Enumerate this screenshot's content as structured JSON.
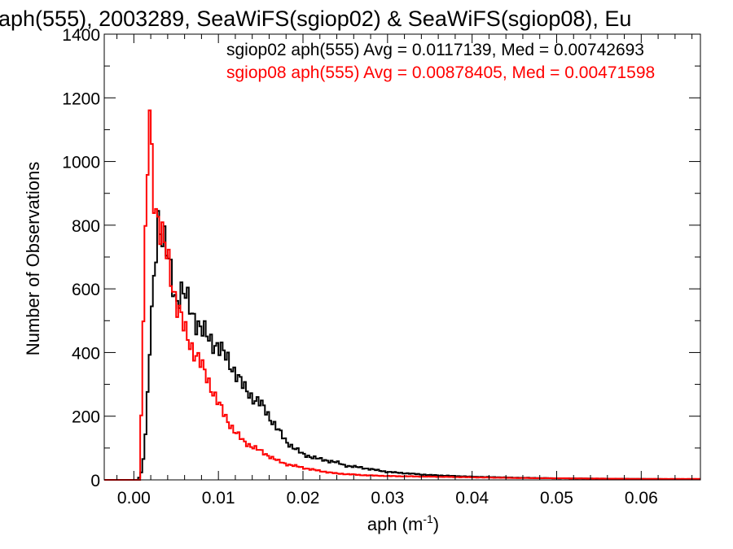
{
  "chart_data": {
    "type": "histogram",
    "title": "aph(555), 2003289, SeaWiFS(sgiop02) & SeaWiFS(sgiop08), Eu",
    "xlabel_base": "aph (m",
    "xlabel_sup": "-1",
    "xlabel_end": ")",
    "ylabel": "Number of Observations",
    "xlim": [
      -0.0035,
      0.067
    ],
    "ylim": [
      0,
      1400
    ],
    "xticks": [
      0.0,
      0.01,
      0.02,
      0.03,
      0.04,
      0.05,
      0.06
    ],
    "xtick_labels": [
      "0.00",
      "0.01",
      "0.02",
      "0.03",
      "0.04",
      "0.05",
      "0.06"
    ],
    "yticks": [
      0,
      200,
      400,
      600,
      800,
      1000,
      1200,
      1400
    ],
    "ytick_labels": [
      "0",
      "200",
      "400",
      "600",
      "800",
      "1000",
      "1200",
      "1400"
    ],
    "bin_width": 0.00025,
    "grid": false,
    "legend_position": "top-right",
    "series": [
      {
        "name": "sgiop02",
        "color": "#000000",
        "legend": "sgiop02 aph(555) Avg = 0.0117139, Med = 0.00742693",
        "points": [
          [
            -0.001,
            0
          ],
          [
            0.0005,
            0
          ],
          [
            0.001,
            30
          ],
          [
            0.0015,
            180
          ],
          [
            0.002,
            480
          ],
          [
            0.0025,
            680
          ],
          [
            0.0028,
            840
          ],
          [
            0.0032,
            780
          ],
          [
            0.0038,
            720
          ],
          [
            0.0045,
            640
          ],
          [
            0.005,
            560
          ],
          [
            0.0055,
            590
          ],
          [
            0.006,
            580
          ],
          [
            0.007,
            520
          ],
          [
            0.008,
            470
          ],
          [
            0.009,
            440
          ],
          [
            0.01,
            420
          ],
          [
            0.011,
            380
          ],
          [
            0.012,
            340
          ],
          [
            0.013,
            290
          ],
          [
            0.014,
            260
          ],
          [
            0.015,
            240
          ],
          [
            0.016,
            200
          ],
          [
            0.017,
            160
          ],
          [
            0.018,
            120
          ],
          [
            0.019,
            100
          ],
          [
            0.02,
            80
          ],
          [
            0.022,
            65
          ],
          [
            0.024,
            55
          ],
          [
            0.025,
            45
          ],
          [
            0.027,
            38
          ],
          [
            0.03,
            25
          ],
          [
            0.035,
            15
          ],
          [
            0.04,
            10
          ],
          [
            0.045,
            7
          ],
          [
            0.05,
            5
          ],
          [
            0.055,
            4
          ],
          [
            0.06,
            3
          ],
          [
            0.067,
            2
          ]
        ]
      },
      {
        "name": "sgiop08",
        "color": "#ff0000",
        "legend": "sgiop08 aph(555) Avg = 0.00878405, Med = 0.00471598",
        "points": [
          [
            -0.001,
            0
          ],
          [
            0.00075,
            0
          ],
          [
            0.001,
            400
          ],
          [
            0.0013,
            660
          ],
          [
            0.0016,
            950
          ],
          [
            0.0019,
            1200
          ],
          [
            0.0022,
            960
          ],
          [
            0.0026,
            860
          ],
          [
            0.003,
            790
          ],
          [
            0.0035,
            740
          ],
          [
            0.004,
            700
          ],
          [
            0.005,
            560
          ],
          [
            0.006,
            470
          ],
          [
            0.007,
            410
          ],
          [
            0.008,
            360
          ],
          [
            0.009,
            300
          ],
          [
            0.01,
            240
          ],
          [
            0.011,
            190
          ],
          [
            0.012,
            150
          ],
          [
            0.013,
            120
          ],
          [
            0.014,
            105
          ],
          [
            0.015,
            90
          ],
          [
            0.016,
            75
          ],
          [
            0.017,
            60
          ],
          [
            0.018,
            50
          ],
          [
            0.02,
            38
          ],
          [
            0.022,
            28
          ],
          [
            0.024,
            20
          ],
          [
            0.027,
            15
          ],
          [
            0.03,
            12
          ],
          [
            0.035,
            10
          ],
          [
            0.04,
            8
          ],
          [
            0.045,
            6
          ],
          [
            0.05,
            5
          ],
          [
            0.055,
            4
          ],
          [
            0.06,
            3
          ],
          [
            0.067,
            3
          ]
        ]
      }
    ]
  }
}
